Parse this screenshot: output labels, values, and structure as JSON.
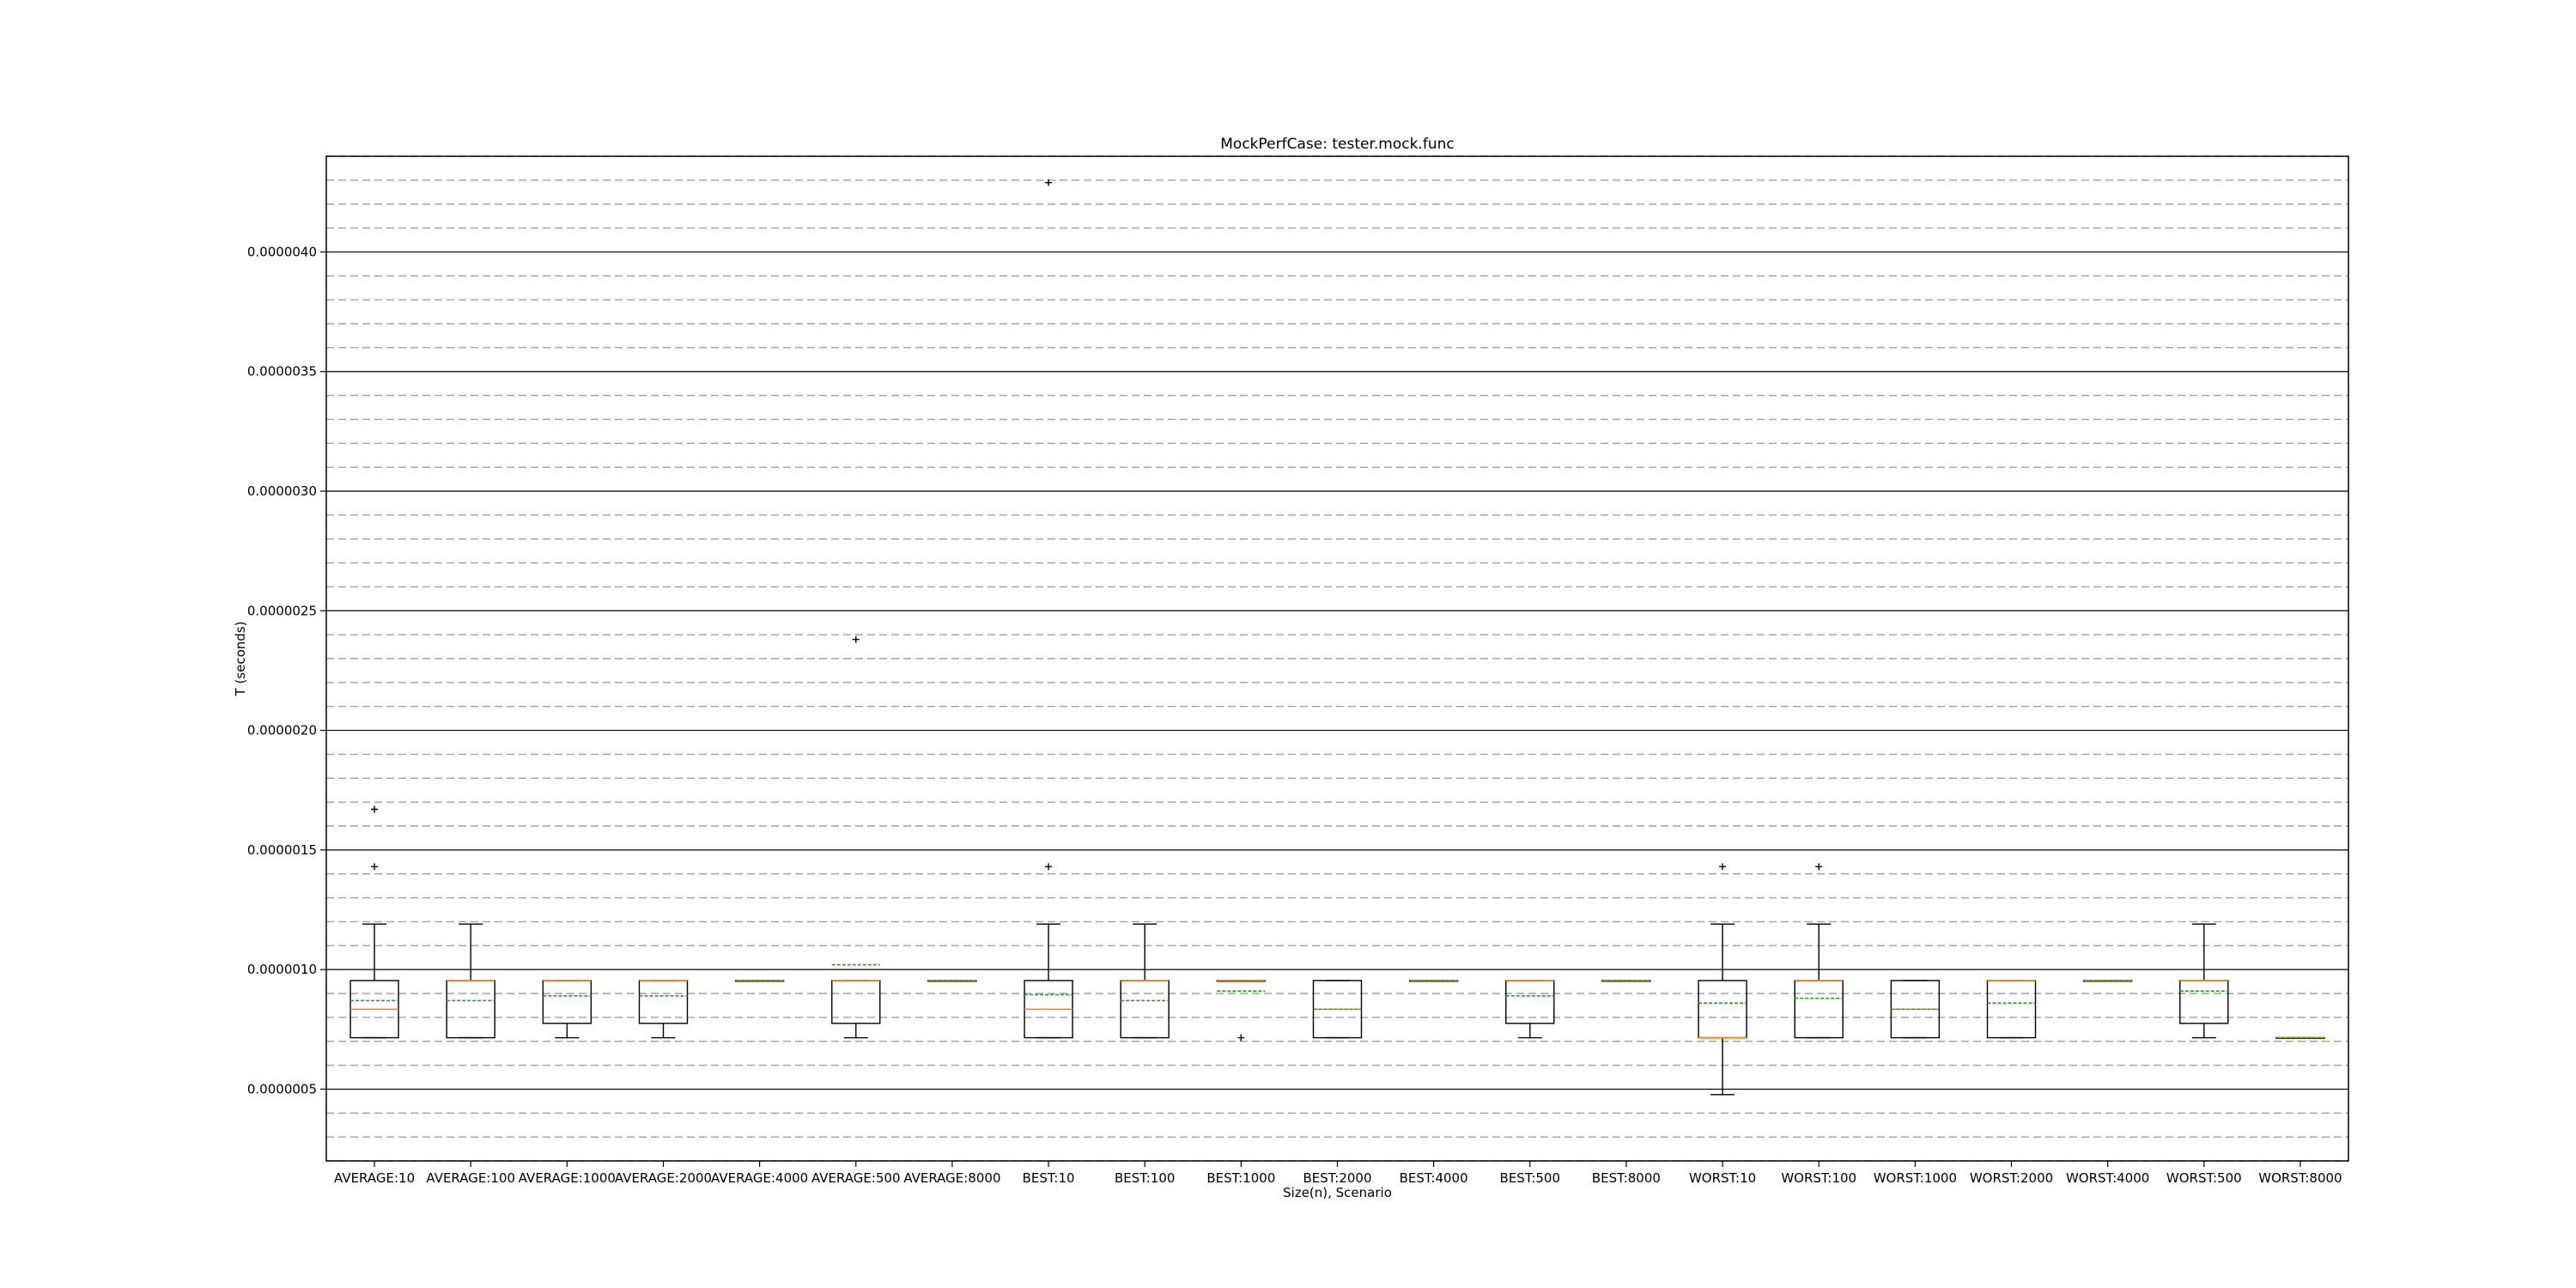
{
  "chart_data": {
    "type": "box",
    "title": "MockPerfCase: tester.mock.func",
    "xlabel": "Size(n), Scenario",
    "ylabel": "T (seconds)",
    "ylim": [
      2e-07,
      4.4e-06
    ],
    "yticks": [
      "0.0000005",
      "0.0000010",
      "0.0000015",
      "0.0000020",
      "0.0000025",
      "0.0000030",
      "0.0000035",
      "0.0000040"
    ],
    "grid": {
      "major": "solid",
      "minor": "dashed",
      "minor_step": 1e-07
    },
    "colors": {
      "box": "#000000",
      "median": "#ff7f0e",
      "mean": "#2ca02c",
      "grid_major": "#000000",
      "grid_minor": "#a0a0a0"
    },
    "categories": [
      "AVERAGE:10",
      "AVERAGE:100",
      "AVERAGE:1000",
      "AVERAGE:2000",
      "AVERAGE:4000",
      "AVERAGE:500",
      "AVERAGE:8000",
      "BEST:10",
      "BEST:100",
      "BEST:1000",
      "BEST:2000",
      "BEST:4000",
      "BEST:500",
      "BEST:8000",
      "WORST:10",
      "WORST:100",
      "WORST:1000",
      "WORST:2000",
      "WORST:4000",
      "WORST:500",
      "WORST:8000"
    ],
    "boxes": [
      {
        "whislo": 7.15e-07,
        "q1": 7.15e-07,
        "median": 8.34e-07,
        "mean": 8.7e-07,
        "q3": 9.54e-07,
        "whishi": 1.19e-06,
        "fliers": [
          1.43e-06,
          1.67e-06
        ]
      },
      {
        "whislo": 7.15e-07,
        "q1": 7.15e-07,
        "median": 9.54e-07,
        "mean": 8.7e-07,
        "q3": 9.54e-07,
        "whishi": 1.19e-06,
        "fliers": []
      },
      {
        "whislo": 7.15e-07,
        "q1": 7.75e-07,
        "median": 9.54e-07,
        "mean": 8.9e-07,
        "q3": 9.54e-07,
        "whishi": 9.54e-07,
        "fliers": []
      },
      {
        "whislo": 7.15e-07,
        "q1": 7.75e-07,
        "median": 9.54e-07,
        "mean": 8.9e-07,
        "q3": 9.54e-07,
        "whishi": 9.54e-07,
        "fliers": []
      },
      {
        "whislo": 9.54e-07,
        "q1": 9.54e-07,
        "median": 9.54e-07,
        "mean": 9.54e-07,
        "q3": 9.54e-07,
        "whishi": 9.54e-07,
        "fliers": []
      },
      {
        "whislo": 7.15e-07,
        "q1": 7.75e-07,
        "median": 9.54e-07,
        "mean": 1.02e-06,
        "q3": 9.54e-07,
        "whishi": 9.54e-07,
        "fliers": [
          2.38e-06
        ]
      },
      {
        "whislo": 9.54e-07,
        "q1": 9.54e-07,
        "median": 9.54e-07,
        "mean": 9.54e-07,
        "q3": 9.54e-07,
        "whishi": 9.54e-07,
        "fliers": []
      },
      {
        "whislo": 7.15e-07,
        "q1": 7.15e-07,
        "median": 8.34e-07,
        "mean": 8.95e-07,
        "q3": 9.54e-07,
        "whishi": 1.19e-06,
        "fliers": [
          1.43e-06,
          4.29e-06
        ]
      },
      {
        "whislo": 7.15e-07,
        "q1": 7.15e-07,
        "median": 9.54e-07,
        "mean": 8.7e-07,
        "q3": 9.54e-07,
        "whishi": 1.19e-06,
        "fliers": []
      },
      {
        "whislo": 9.54e-07,
        "q1": 9.54e-07,
        "median": 9.54e-07,
        "mean": 9.1e-07,
        "q3": 9.54e-07,
        "whishi": 9.54e-07,
        "fliers": [
          7.15e-07
        ]
      },
      {
        "whislo": 7.15e-07,
        "q1": 7.15e-07,
        "median": 8.34e-07,
        "mean": 8.34e-07,
        "q3": 9.54e-07,
        "whishi": 9.54e-07,
        "fliers": []
      },
      {
        "whislo": 9.54e-07,
        "q1": 9.54e-07,
        "median": 9.54e-07,
        "mean": 9.54e-07,
        "q3": 9.54e-07,
        "whishi": 9.54e-07,
        "fliers": []
      },
      {
        "whislo": 7.15e-07,
        "q1": 7.75e-07,
        "median": 9.54e-07,
        "mean": 8.9e-07,
        "q3": 9.54e-07,
        "whishi": 9.54e-07,
        "fliers": []
      },
      {
        "whislo": 9.54e-07,
        "q1": 9.54e-07,
        "median": 9.54e-07,
        "mean": 9.54e-07,
        "q3": 9.54e-07,
        "whishi": 9.54e-07,
        "fliers": []
      },
      {
        "whislo": 4.77e-07,
        "q1": 7.15e-07,
        "median": 7.15e-07,
        "mean": 8.6e-07,
        "q3": 9.54e-07,
        "whishi": 1.19e-06,
        "fliers": [
          1.43e-06
        ]
      },
      {
        "whislo": 7.15e-07,
        "q1": 7.15e-07,
        "median": 9.54e-07,
        "mean": 8.8e-07,
        "q3": 9.54e-07,
        "whishi": 1.19e-06,
        "fliers": [
          1.43e-06
        ]
      },
      {
        "whislo": 7.15e-07,
        "q1": 7.15e-07,
        "median": 8.34e-07,
        "mean": 8.34e-07,
        "q3": 9.54e-07,
        "whishi": 9.54e-07,
        "fliers": []
      },
      {
        "whislo": 7.15e-07,
        "q1": 7.15e-07,
        "median": 9.54e-07,
        "mean": 8.6e-07,
        "q3": 9.54e-07,
        "whishi": 9.54e-07,
        "fliers": []
      },
      {
        "whislo": 9.54e-07,
        "q1": 9.54e-07,
        "median": 9.54e-07,
        "mean": 9.54e-07,
        "q3": 9.54e-07,
        "whishi": 9.54e-07,
        "fliers": []
      },
      {
        "whislo": 7.15e-07,
        "q1": 7.75e-07,
        "median": 9.54e-07,
        "mean": 9.1e-07,
        "q3": 9.54e-07,
        "whishi": 1.19e-06,
        "fliers": []
      },
      {
        "whislo": 7.15e-07,
        "q1": 7.15e-07,
        "median": 7.15e-07,
        "mean": 7.15e-07,
        "q3": 7.15e-07,
        "whishi": 7.15e-07,
        "fliers": []
      }
    ]
  }
}
